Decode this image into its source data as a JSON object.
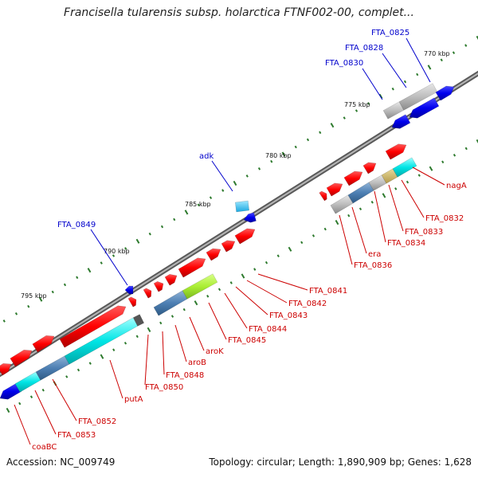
{
  "title": "Francisella tularensis subsp. holarctica FTNF002-00, complet...",
  "footer": {
    "accession": "Accession: NC_009749",
    "summary": "Topology: circular; Length: 1,890,909 bp; Genes: 1,628"
  },
  "colors": {
    "forward": "#ff0000",
    "reverse": "#0000ff",
    "backbone": "#888888",
    "tick": "#2d7a2d",
    "label_forward": "#cc0000",
    "label_reverse": "#0000cc"
  },
  "ticks": [
    "770 kbp",
    "775 kbp",
    "780 kbp",
    "785 kbp",
    "790 kbp",
    "795 kbp"
  ],
  "labels_reverse": [
    "FTA_0825",
    "FTA_0828",
    "FTA_0830",
    "adk",
    "FTA_0849"
  ],
  "labels_forward": [
    "nagA",
    "FTA_0832",
    "FTA_0833",
    "FTA_0834",
    "era",
    "FTA_0836",
    "FTA_0841",
    "FTA_0842",
    "FTA_0843",
    "FTA_0844",
    "FTA_0845",
    "aroK",
    "aroB",
    "FTA_0848",
    "FTA_0850",
    "putA",
    "FTA_0852",
    "FTA_0853",
    "coaBC"
  ]
}
